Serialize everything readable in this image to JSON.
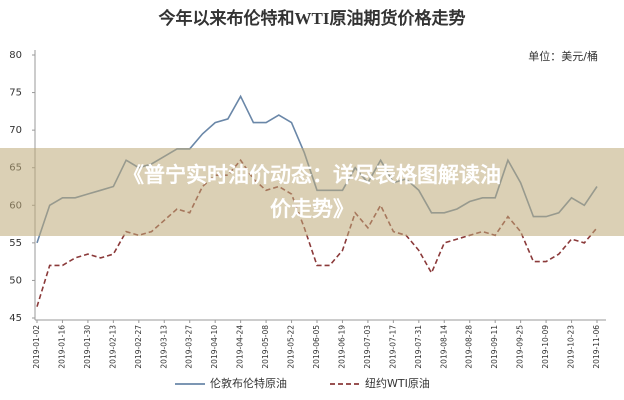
{
  "chart_data": {
    "type": "line",
    "title": "今年以来布伦特和WTI原油期货价格走势",
    "unit_label": "单位：美元/桶",
    "overlay_lines": [
      "《普宁实时油价动态：详尽表格图解读油",
      "价走势》"
    ],
    "categories": [
      "2019-01-02",
      null,
      "2019-01-16",
      null,
      "2019-01-30",
      null,
      "2019-02-13",
      null,
      "2019-02-27",
      null,
      "2019-03-13",
      null,
      "2019-03-27",
      null,
      "2019-04-10",
      null,
      "2019-04-24",
      null,
      "2019-05-08",
      null,
      "2019-05-22",
      null,
      "2019-06-05",
      null,
      "2019-06-19",
      null,
      "2019-07-03",
      null,
      "2019-07-17",
      null,
      "2019-07-31",
      null,
      "2019-08-14",
      null,
      "2019-08-28",
      null,
      "2019-09-11",
      null,
      "2019-09-25",
      null,
      "2019-10-09",
      null,
      "2019-10-23",
      null,
      "2019-11-06"
    ],
    "series": [
      {
        "name": "伦敦布伦特原油",
        "color": "#6a87a8",
        "dashed": false,
        "values": [
          55,
          60,
          61,
          61,
          61.5,
          62,
          62.5,
          66,
          65,
          65.5,
          66.5,
          67.5,
          67.5,
          69.5,
          71,
          71.5,
          74.5,
          71,
          71,
          72,
          71,
          67,
          62,
          62,
          62,
          65,
          63,
          66,
          63,
          63.5,
          62,
          59,
          59,
          59.5,
          60.5,
          61,
          61,
          66,
          63,
          58.5,
          58.5,
          59,
          61,
          60,
          62.5
        ]
      },
      {
        "name": "纽约WTI原油",
        "color": "#8b3a3a",
        "dashed": true,
        "values": [
          46.5,
          52,
          52,
          53,
          53.5,
          53,
          53.5,
          56.5,
          56,
          56.5,
          58,
          59.5,
          59,
          62.5,
          64,
          64,
          66,
          63.5,
          62,
          62.5,
          61.5,
          57,
          52,
          52,
          54,
          59,
          57,
          60,
          56.5,
          56,
          54,
          51,
          55,
          55.5,
          56,
          56.5,
          56,
          58.5,
          56.5,
          52.5,
          52.5,
          53.5,
          55.5,
          55,
          57
        ]
      }
    ],
    "ylim": [
      45,
      80
    ],
    "yticks": [
      45,
      50,
      55,
      60,
      65,
      70,
      75,
      80
    ],
    "grid": false
  }
}
